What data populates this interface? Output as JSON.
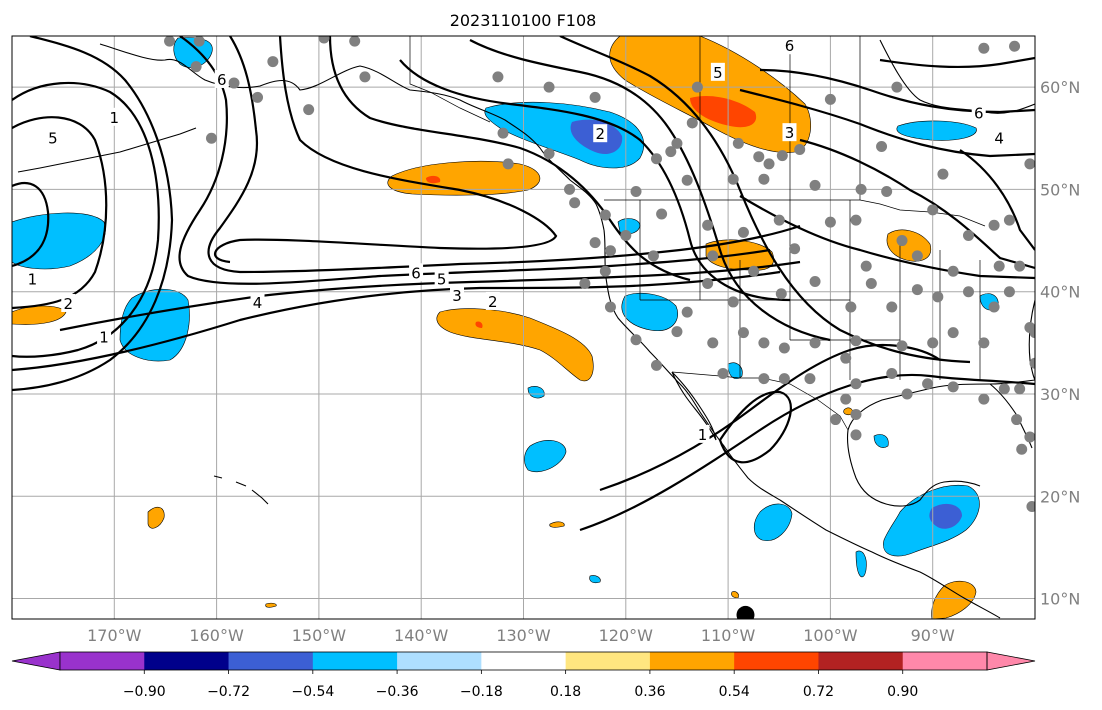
{
  "title": "2023110100 F108",
  "lon_ticks": [
    {
      "label": "170°W",
      "lon": -170
    },
    {
      "label": "160°W",
      "lon": -160
    },
    {
      "label": "150°W",
      "lon": -150
    },
    {
      "label": "140°W",
      "lon": -140
    },
    {
      "label": "130°W",
      "lon": -130
    },
    {
      "label": "120°W",
      "lon": -120
    },
    {
      "label": "110°W",
      "lon": -110
    },
    {
      "label": "100°W",
      "lon": -100
    },
    {
      "label": "90°W",
      "lon": -90
    }
  ],
  "lat_ticks": [
    {
      "label": "10°N",
      "lat": 10
    },
    {
      "label": "20°N",
      "lat": 20
    },
    {
      "label": "30°N",
      "lat": 30
    },
    {
      "label": "40°N",
      "lat": 40
    },
    {
      "label": "50°N",
      "lat": 50
    },
    {
      "label": "60°N",
      "lat": 60
    }
  ],
  "map_extent": {
    "lon_min": -180,
    "lon_max": -80,
    "lat_min": 8,
    "lat_max": 65
  },
  "colorbar": {
    "labels": [
      "−0.90",
      "−0.72",
      "−0.54",
      "−0.36",
      "−0.18",
      "0.18",
      "0.36",
      "0.54",
      "0.72",
      "0.90"
    ],
    "colors": [
      "#9932cc",
      "#00008b",
      "#3c5fd4",
      "#00bfff",
      "#aedfff",
      "#ffffff",
      "#ffe680",
      "#ffa500",
      "#ff4500",
      "#b22222",
      "#ff88aa"
    ],
    "under_color": "#9932cc",
    "over_color": "#ff88aa"
  },
  "contour_labels": [
    {
      "text": "1",
      "lon": -170.0,
      "lat": 57.0
    },
    {
      "text": "5",
      "lon": -176.0,
      "lat": 55.0
    },
    {
      "text": "6",
      "lon": -159.5,
      "lat": 60.7
    },
    {
      "text": "6",
      "lon": -140.5,
      "lat": 41.8
    },
    {
      "text": "5",
      "lon": -138.0,
      "lat": 41.2
    },
    {
      "text": "4",
      "lon": -156.0,
      "lat": 38.9
    },
    {
      "text": "3",
      "lon": -136.5,
      "lat": 39.6
    },
    {
      "text": "2",
      "lon": -133.0,
      "lat": 39.0
    },
    {
      "text": "1",
      "lon": -171.0,
      "lat": 35.5
    },
    {
      "text": "1",
      "lon": -178.0,
      "lat": 41.2
    },
    {
      "text": "2",
      "lon": -174.5,
      "lat": 38.8
    },
    {
      "text": "2",
      "lon": -122.5,
      "lat": 55.4
    },
    {
      "text": "5",
      "lon": -111.0,
      "lat": 61.4
    },
    {
      "text": "3",
      "lon": -104.0,
      "lat": 55.5
    },
    {
      "text": "6",
      "lon": -104.0,
      "lat": 64.0
    },
    {
      "text": "6",
      "lon": -85.5,
      "lat": 57.4
    },
    {
      "text": "4",
      "lon": -83.5,
      "lat": 55.0
    },
    {
      "text": "1",
      "lon": -112.5,
      "lat": 26.0
    }
  ],
  "stations": [
    [
      -164.6,
      64.5
    ],
    [
      -161.7,
      64.5
    ],
    [
      -162.0,
      62.0
    ],
    [
      -149.5,
      64.8
    ],
    [
      -146.5,
      64.5
    ],
    [
      -154.5,
      62.5
    ],
    [
      -158.3,
      60.4
    ],
    [
      -156.0,
      59.0
    ],
    [
      -151.0,
      57.8
    ],
    [
      -160.5,
      55.0
    ],
    [
      -145.5,
      61.0
    ],
    [
      -132.5,
      61.0
    ],
    [
      -127.5,
      60.0
    ],
    [
      -123.0,
      59.0
    ],
    [
      -113.0,
      60.0
    ],
    [
      -113.5,
      56.5
    ],
    [
      -115.0,
      54.5
    ],
    [
      -115.6,
      53.7
    ],
    [
      -117.0,
      53.0
    ],
    [
      -109.0,
      54.5
    ],
    [
      -107.0,
      53.2
    ],
    [
      -106.0,
      52.5
    ],
    [
      -104.7,
      53.3
    ],
    [
      -114.0,
      50.9
    ],
    [
      -109.5,
      51.0
    ],
    [
      -106.5,
      51.0
    ],
    [
      -101.5,
      50.4
    ],
    [
      -97.0,
      50.0
    ],
    [
      -94.5,
      49.8
    ],
    [
      -90.0,
      48.0
    ],
    [
      -89.0,
      51.5
    ],
    [
      -93.5,
      60.0
    ],
    [
      -100.0,
      58.8
    ],
    [
      -103.0,
      53.9
    ],
    [
      -95.0,
      54.2
    ],
    [
      -85.0,
      63.8
    ],
    [
      -82.0,
      64.0
    ],
    [
      -80.5,
      52.5
    ],
    [
      -86.5,
      45.5
    ],
    [
      -84.0,
      46.5
    ],
    [
      -83.5,
      42.5
    ],
    [
      -88.0,
      42.0
    ],
    [
      -91.5,
      43.5
    ],
    [
      -93.0,
      45.0
    ],
    [
      -96.5,
      42.5
    ],
    [
      -97.5,
      47.0
    ],
    [
      -100.0,
      46.8
    ],
    [
      -103.5,
      44.2
    ],
    [
      -105.0,
      47.0
    ],
    [
      -108.5,
      45.8
    ],
    [
      -112.0,
      46.5
    ],
    [
      -116.5,
      47.6
    ],
    [
      -119.0,
      49.8
    ],
    [
      -122.0,
      47.5
    ],
    [
      -123.0,
      44.8
    ],
    [
      -125.5,
      50.0
    ],
    [
      -127.5,
      53.5
    ],
    [
      -132.0,
      55.5
    ],
    [
      -131.5,
      52.5
    ],
    [
      -125.0,
      48.7
    ],
    [
      -120.0,
      45.5
    ],
    [
      -117.3,
      43.5
    ],
    [
      -122.0,
      42.0
    ],
    [
      -112.0,
      40.8
    ],
    [
      -111.5,
      43.5
    ],
    [
      -114.0,
      38.0
    ],
    [
      -109.5,
      39.0
    ],
    [
      -107.5,
      42.0
    ],
    [
      -104.8,
      39.8
    ],
    [
      -101.5,
      41.0
    ],
    [
      -98.0,
      38.5
    ],
    [
      -96.0,
      40.8
    ],
    [
      -94.0,
      38.5
    ],
    [
      -91.5,
      40.2
    ],
    [
      -89.5,
      39.5
    ],
    [
      -86.5,
      40.0
    ],
    [
      -84.0,
      38.5
    ],
    [
      -82.5,
      40.0
    ],
    [
      -80.5,
      36.5
    ],
    [
      -85.0,
      35.0
    ],
    [
      -88.0,
      36.0
    ],
    [
      -90.0,
      35.0
    ],
    [
      -93.0,
      34.7
    ],
    [
      -97.5,
      35.2
    ],
    [
      -98.5,
      33.5
    ],
    [
      -101.5,
      35.0
    ],
    [
      -104.5,
      34.5
    ],
    [
      -106.5,
      35.0
    ],
    [
      -108.5,
      36.0
    ],
    [
      -111.5,
      35.0
    ],
    [
      -115.0,
      36.1
    ],
    [
      -119.0,
      35.3
    ],
    [
      -117.0,
      32.8
    ],
    [
      -121.5,
      38.5
    ],
    [
      -124.0,
      40.8
    ],
    [
      -121.5,
      44.0
    ],
    [
      -110.5,
      32.0
    ],
    [
      -106.5,
      31.5
    ],
    [
      -104.5,
      31.5
    ],
    [
      -102.0,
      31.5
    ],
    [
      -97.5,
      31.0
    ],
    [
      -94.0,
      32.0
    ],
    [
      -90.5,
      31.0
    ],
    [
      -92.5,
      30.0
    ],
    [
      -88.0,
      30.7
    ],
    [
      -85.0,
      29.5
    ],
    [
      -83.0,
      30.5
    ],
    [
      -81.5,
      30.5
    ],
    [
      -81.8,
      27.5
    ],
    [
      -80.5,
      25.8
    ],
    [
      -81.3,
      24.6
    ],
    [
      -80.3,
      19.0
    ],
    [
      -97.5,
      26.0
    ],
    [
      -97.5,
      28.0
    ],
    [
      -99.5,
      27.5
    ],
    [
      -98.5,
      29.5
    ],
    [
      -80.0,
      33.0
    ],
    [
      -78.5,
      34.0
    ],
    [
      -80.0,
      36.0
    ],
    [
      -81.5,
      42.5
    ],
    [
      -82.5,
      47.0
    ]
  ],
  "black_marker": {
    "lon": -108.3,
    "lat": 8.4
  }
}
